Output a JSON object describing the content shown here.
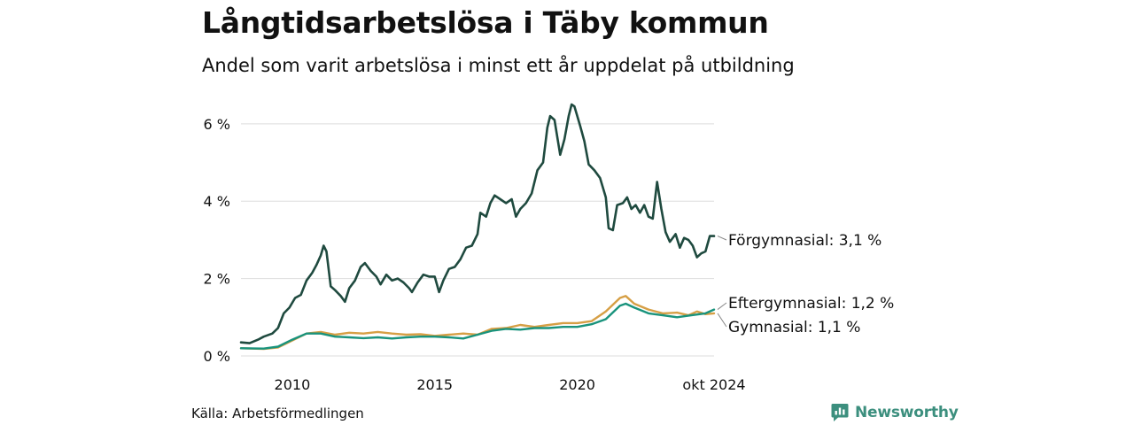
{
  "title": "Långtidsarbetslösa i Täby kommun",
  "subtitle": "Andel som varit arbetslösa i minst ett år uppdelat på utbildning",
  "source": "Källa: Arbetsförmedlingen",
  "brand": "Newsworthy",
  "colors": {
    "forgymnasial": "#1f4a3f",
    "gymnasial": "#d69f45",
    "eftergymnasial": "#19937c",
    "grid": "#dddddd",
    "brand": "#3c8f7e"
  },
  "chart_data": {
    "type": "line",
    "title": "Långtidsarbetslösa i Täby kommun",
    "subtitle": "Andel som varit arbetslösa i minst ett år uppdelat på utbildning",
    "xlabel": "",
    "ylabel": "",
    "xlim": [
      2008.2,
      2024.8
    ],
    "ylim": [
      0,
      6.5
    ],
    "grid": true,
    "y_ticks": [
      0,
      2,
      4,
      6
    ],
    "y_tick_labels": [
      "0 %",
      "2 %",
      "4 %",
      "6 %"
    ],
    "x_ticks": [
      2010,
      2015,
      2020,
      2024.8
    ],
    "x_tick_labels": [
      "2010",
      "2015",
      "2020",
      "okt 2024"
    ],
    "series": [
      {
        "name": "Förgymnasial",
        "label": "Förgymnasial: 3,1 %",
        "color": "#1f4a3f",
        "points": [
          [
            2008.2,
            0.35
          ],
          [
            2008.5,
            0.33
          ],
          [
            2008.8,
            0.42
          ],
          [
            2009.0,
            0.5
          ],
          [
            2009.3,
            0.58
          ],
          [
            2009.5,
            0.72
          ],
          [
            2009.7,
            1.1
          ],
          [
            2009.9,
            1.25
          ],
          [
            2010.1,
            1.5
          ],
          [
            2010.3,
            1.58
          ],
          [
            2010.5,
            1.95
          ],
          [
            2010.7,
            2.15
          ],
          [
            2010.85,
            2.35
          ],
          [
            2011.0,
            2.6
          ],
          [
            2011.1,
            2.85
          ],
          [
            2011.2,
            2.7
          ],
          [
            2011.35,
            1.8
          ],
          [
            2011.5,
            1.7
          ],
          [
            2011.7,
            1.55
          ],
          [
            2011.85,
            1.4
          ],
          [
            2012.0,
            1.75
          ],
          [
            2012.2,
            1.95
          ],
          [
            2012.4,
            2.3
          ],
          [
            2012.55,
            2.4
          ],
          [
            2012.75,
            2.2
          ],
          [
            2012.95,
            2.05
          ],
          [
            2013.1,
            1.85
          ],
          [
            2013.3,
            2.1
          ],
          [
            2013.5,
            1.95
          ],
          [
            2013.7,
            2.0
          ],
          [
            2013.9,
            1.9
          ],
          [
            2014.1,
            1.75
          ],
          [
            2014.2,
            1.65
          ],
          [
            2014.4,
            1.9
          ],
          [
            2014.6,
            2.1
          ],
          [
            2014.8,
            2.05
          ],
          [
            2015.0,
            2.05
          ],
          [
            2015.15,
            1.65
          ],
          [
            2015.3,
            1.95
          ],
          [
            2015.5,
            2.25
          ],
          [
            2015.7,
            2.3
          ],
          [
            2015.9,
            2.5
          ],
          [
            2016.1,
            2.8
          ],
          [
            2016.3,
            2.85
          ],
          [
            2016.5,
            3.15
          ],
          [
            2016.6,
            3.7
          ],
          [
            2016.8,
            3.6
          ],
          [
            2016.95,
            3.95
          ],
          [
            2017.1,
            4.15
          ],
          [
            2017.3,
            4.05
          ],
          [
            2017.5,
            3.95
          ],
          [
            2017.7,
            4.05
          ],
          [
            2017.85,
            3.6
          ],
          [
            2018.0,
            3.8
          ],
          [
            2018.2,
            3.95
          ],
          [
            2018.4,
            4.2
          ],
          [
            2018.6,
            4.8
          ],
          [
            2018.8,
            5.0
          ],
          [
            2018.95,
            5.9
          ],
          [
            2019.05,
            6.2
          ],
          [
            2019.2,
            6.1
          ],
          [
            2019.4,
            5.2
          ],
          [
            2019.55,
            5.6
          ],
          [
            2019.7,
            6.2
          ],
          [
            2019.8,
            6.5
          ],
          [
            2019.9,
            6.45
          ],
          [
            2020.1,
            5.95
          ],
          [
            2020.25,
            5.55
          ],
          [
            2020.4,
            4.95
          ],
          [
            2020.6,
            4.8
          ],
          [
            2020.8,
            4.6
          ],
          [
            2021.0,
            4.1
          ],
          [
            2021.1,
            3.3
          ],
          [
            2021.25,
            3.25
          ],
          [
            2021.4,
            3.9
          ],
          [
            2021.6,
            3.95
          ],
          [
            2021.75,
            4.1
          ],
          [
            2021.9,
            3.8
          ],
          [
            2022.05,
            3.9
          ],
          [
            2022.2,
            3.7
          ],
          [
            2022.35,
            3.9
          ],
          [
            2022.5,
            3.6
          ],
          [
            2022.65,
            3.55
          ],
          [
            2022.8,
            4.5
          ],
          [
            2022.95,
            3.8
          ],
          [
            2023.1,
            3.2
          ],
          [
            2023.25,
            2.95
          ],
          [
            2023.45,
            3.15
          ],
          [
            2023.6,
            2.8
          ],
          [
            2023.75,
            3.05
          ],
          [
            2023.9,
            3.0
          ],
          [
            2024.05,
            2.85
          ],
          [
            2024.2,
            2.55
          ],
          [
            2024.35,
            2.65
          ],
          [
            2024.5,
            2.7
          ],
          [
            2024.65,
            3.1
          ],
          [
            2024.8,
            3.1
          ]
        ]
      },
      {
        "name": "Gymnasial",
        "label": "Gymnasial: 1,1 %",
        "color": "#d69f45",
        "points": [
          [
            2008.2,
            0.2
          ],
          [
            2009.0,
            0.18
          ],
          [
            2009.5,
            0.22
          ],
          [
            2010.0,
            0.4
          ],
          [
            2010.5,
            0.58
          ],
          [
            2011.0,
            0.62
          ],
          [
            2011.5,
            0.55
          ],
          [
            2012.0,
            0.6
          ],
          [
            2012.5,
            0.58
          ],
          [
            2013.0,
            0.62
          ],
          [
            2013.5,
            0.58
          ],
          [
            2014.0,
            0.55
          ],
          [
            2014.5,
            0.56
          ],
          [
            2015.0,
            0.52
          ],
          [
            2015.5,
            0.55
          ],
          [
            2016.0,
            0.58
          ],
          [
            2016.5,
            0.55
          ],
          [
            2017.0,
            0.7
          ],
          [
            2017.5,
            0.72
          ],
          [
            2018.0,
            0.8
          ],
          [
            2018.5,
            0.75
          ],
          [
            2019.0,
            0.8
          ],
          [
            2019.5,
            0.85
          ],
          [
            2020.0,
            0.85
          ],
          [
            2020.5,
            0.9
          ],
          [
            2021.0,
            1.15
          ],
          [
            2021.5,
            1.5
          ],
          [
            2021.7,
            1.55
          ],
          [
            2022.0,
            1.35
          ],
          [
            2022.5,
            1.2
          ],
          [
            2023.0,
            1.1
          ],
          [
            2023.5,
            1.12
          ],
          [
            2023.9,
            1.05
          ],
          [
            2024.2,
            1.15
          ],
          [
            2024.5,
            1.08
          ],
          [
            2024.8,
            1.1
          ]
        ]
      },
      {
        "name": "Eftergymnasial",
        "label": "Eftergymnasial: 1,2 %",
        "color": "#19937c",
        "points": [
          [
            2008.2,
            0.2
          ],
          [
            2009.0,
            0.19
          ],
          [
            2009.5,
            0.24
          ],
          [
            2010.0,
            0.42
          ],
          [
            2010.5,
            0.58
          ],
          [
            2011.0,
            0.58
          ],
          [
            2011.5,
            0.5
          ],
          [
            2012.0,
            0.48
          ],
          [
            2012.5,
            0.46
          ],
          [
            2013.0,
            0.48
          ],
          [
            2013.5,
            0.45
          ],
          [
            2014.0,
            0.48
          ],
          [
            2014.5,
            0.5
          ],
          [
            2015.0,
            0.5
          ],
          [
            2015.5,
            0.48
          ],
          [
            2016.0,
            0.45
          ],
          [
            2016.5,
            0.55
          ],
          [
            2017.0,
            0.65
          ],
          [
            2017.5,
            0.7
          ],
          [
            2018.0,
            0.68
          ],
          [
            2018.5,
            0.72
          ],
          [
            2019.0,
            0.72
          ],
          [
            2019.5,
            0.75
          ],
          [
            2020.0,
            0.75
          ],
          [
            2020.5,
            0.82
          ],
          [
            2021.0,
            0.95
          ],
          [
            2021.5,
            1.3
          ],
          [
            2021.7,
            1.35
          ],
          [
            2022.0,
            1.25
          ],
          [
            2022.5,
            1.1
          ],
          [
            2023.0,
            1.05
          ],
          [
            2023.5,
            1.0
          ],
          [
            2024.0,
            1.05
          ],
          [
            2024.5,
            1.1
          ],
          [
            2024.8,
            1.2
          ]
        ]
      }
    ]
  }
}
